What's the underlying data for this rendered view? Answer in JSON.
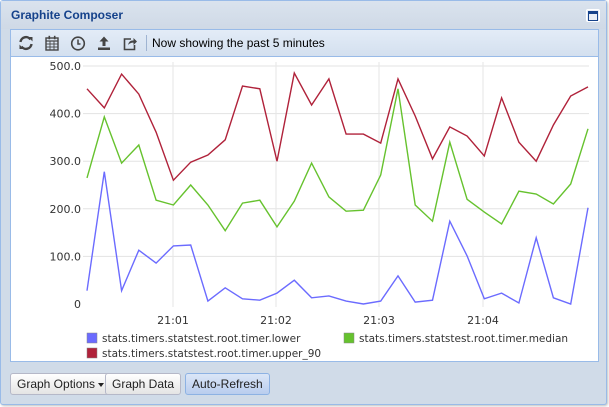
{
  "window": {
    "title": "Graphite Composer"
  },
  "toolbar": {
    "icons": [
      "refresh-icon",
      "calendar-icon",
      "clock-icon",
      "upload-icon",
      "share-icon"
    ],
    "status": "Now showing the past 5 minutes"
  },
  "footer": {
    "graph_options_label": "Graph Options",
    "graph_data_label": "Graph Data",
    "auto_refresh_label": "Auto-Refresh"
  },
  "chart_data": {
    "type": "line",
    "title": "",
    "xlabel": "",
    "ylabel": "",
    "ylim": [
      0,
      500
    ],
    "yticks": [
      "0",
      "100.0",
      "200.0",
      "300.0",
      "400.0",
      "500.0"
    ],
    "xticks": [
      "21:01",
      "21:02",
      "21:03",
      "21:04"
    ],
    "grid": true,
    "legend_position": "bottom",
    "x": [
      0,
      1,
      2,
      3,
      4,
      5,
      6,
      7,
      8,
      9,
      10,
      11,
      12,
      13,
      14,
      15,
      16,
      17,
      18,
      19,
      20,
      21,
      22,
      23,
      24,
      25,
      26,
      27,
      28,
      29
    ],
    "series": [
      {
        "name": "stats.timers.statstest.root.timer.lower",
        "color": "#6b6bff",
        "values": [
          28,
          278,
          28,
          113,
          86,
          122,
          124,
          6,
          34,
          11,
          8,
          23,
          50,
          13,
          17,
          6,
          0,
          6,
          59,
          4,
          8,
          174,
          101,
          11,
          23,
          2,
          139,
          13,
          0,
          202
        ]
      },
      {
        "name": "stats.timers.statstest.root.timer.median",
        "color": "#66c22e",
        "values": [
          265,
          393,
          296,
          334,
          218,
          208,
          250,
          208,
          154,
          212,
          218,
          162,
          216,
          296,
          225,
          195,
          197,
          271,
          452,
          208,
          174,
          340,
          220,
          193,
          168,
          237,
          231,
          210,
          252,
          368
        ]
      },
      {
        "name": "stats.timers.statstest.root.timer.upper_90",
        "color": "#b0223a",
        "values": [
          452,
          412,
          483,
          441,
          361,
          260,
          298,
          313,
          345,
          458,
          452,
          300,
          485,
          418,
          473,
          357,
          357,
          338,
          473,
          395,
          305,
          372,
          353,
          311,
          433,
          340,
          300,
          376,
          437,
          456
        ]
      }
    ]
  }
}
